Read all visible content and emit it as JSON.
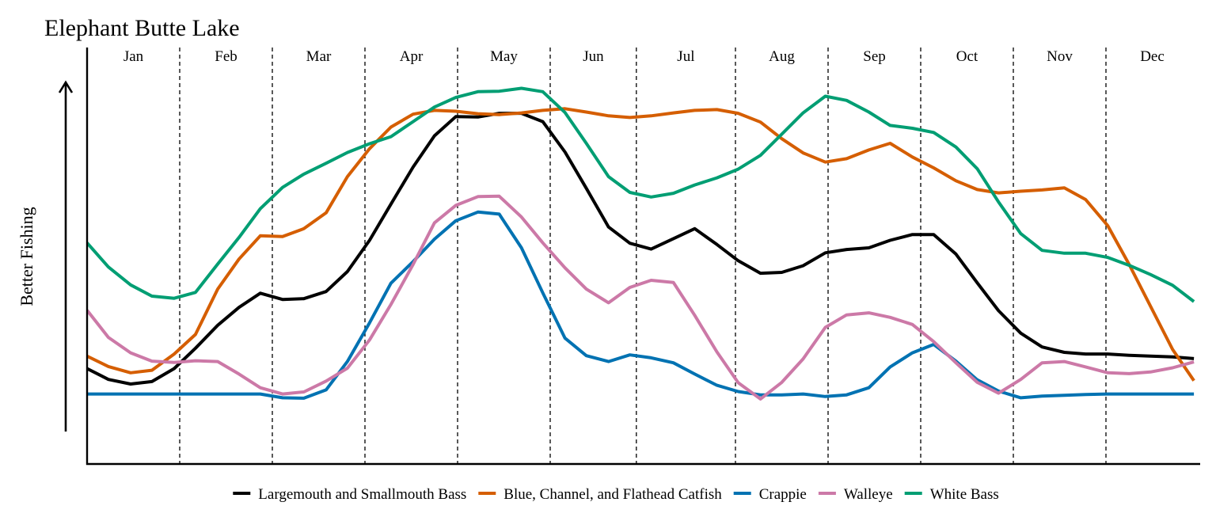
{
  "chart_data": {
    "type": "line",
    "title": "Elephant Butte Lake",
    "xlabel": "",
    "ylabel": "Better Fishing",
    "xlim": [
      0,
      12
    ],
    "ylim": [
      0,
      100
    ],
    "grid": "vertical dashed separators between months",
    "legend_position": "bottom",
    "categories": [
      "Jan",
      "Feb",
      "Mar",
      "Apr",
      "May",
      "Jun",
      "Jul",
      "Aug",
      "Sep",
      "Oct",
      "Nov",
      "Dec"
    ],
    "month_boundaries": [
      1.0,
      2.0,
      3.0,
      4.0,
      5.0,
      5.93,
      7.0,
      8.0,
      9.0,
      10.0,
      11.0
    ],
    "x": [
      0.0,
      0.23,
      0.47,
      0.7,
      0.94,
      1.17,
      1.41,
      1.64,
      1.87,
      2.11,
      2.34,
      2.58,
      2.81,
      3.05,
      3.28,
      3.52,
      3.75,
      3.98,
      4.22,
      4.45,
      4.69,
      4.92,
      5.16,
      5.39,
      5.63,
      5.86,
      6.09,
      6.33,
      6.56,
      6.8,
      7.03,
      7.27,
      7.5,
      7.73,
      7.97,
      8.2,
      8.44,
      8.67,
      8.91,
      9.14,
      9.38,
      9.61,
      9.84,
      10.08,
      10.31,
      10.55,
      10.78,
      11.02,
      11.25,
      11.48,
      11.72,
      11.95
    ],
    "series": [
      {
        "name": "Largemouth and Smallmouth Bass",
        "color": "#000000",
        "values": [
          22.9,
          20.3,
          19.2,
          19.8,
          22.9,
          27.8,
          33.3,
          37.6,
          41.0,
          39.5,
          39.7,
          41.4,
          46.2,
          53.7,
          62.4,
          71.3,
          78.8,
          83.4,
          83.3,
          84.2,
          84.2,
          82.2,
          74.9,
          66.2,
          56.9,
          53.0,
          51.6,
          54.1,
          56.5,
          52.7,
          48.8,
          45.8,
          46.0,
          47.6,
          50.7,
          51.5,
          51.9,
          53.7,
          55.1,
          55.1,
          50.4,
          43.5,
          36.8,
          31.4,
          28.1,
          26.8,
          26.4,
          26.4,
          26.1,
          25.9,
          25.7,
          25.3
        ]
      },
      {
        "name": "Blue, Channel, and Flathead Catfish",
        "color": "#d55e00",
        "values": [
          25.9,
          23.4,
          21.9,
          22.5,
          26.4,
          31.1,
          42.0,
          49.2,
          54.8,
          54.6,
          56.5,
          60.3,
          69.0,
          75.7,
          80.9,
          84.0,
          84.9,
          84.7,
          84.1,
          83.9,
          84.3,
          84.9,
          85.3,
          84.5,
          83.6,
          83.2,
          83.6,
          84.3,
          84.9,
          85.1,
          84.2,
          82.1,
          78.1,
          74.7,
          72.5,
          73.3,
          75.4,
          77.0,
          73.7,
          71.1,
          68.0,
          65.9,
          65.1,
          65.5,
          65.8,
          66.3,
          63.5,
          57.2,
          47.9,
          37.9,
          27.5,
          20.0
        ]
      },
      {
        "name": "Crappie",
        "color": "#0072b2",
        "values": [
          16.8,
          16.8,
          16.8,
          16.8,
          16.8,
          16.8,
          16.8,
          16.8,
          16.8,
          15.9,
          15.8,
          17.8,
          24.6,
          33.9,
          43.4,
          48.6,
          54.0,
          58.4,
          60.5,
          60.0,
          51.9,
          41.1,
          30.2,
          26.0,
          24.6,
          26.2,
          25.5,
          24.3,
          21.6,
          18.9,
          17.4,
          16.6,
          16.6,
          16.8,
          16.2,
          16.6,
          18.3,
          23.3,
          26.7,
          28.7,
          24.7,
          20.2,
          17.5,
          15.9,
          16.3,
          16.5,
          16.7,
          16.8,
          16.8,
          16.8,
          16.8,
          16.8
        ]
      },
      {
        "name": "Walleye",
        "color": "#cc79a7",
        "values": [
          36.9,
          30.4,
          26.7,
          24.7,
          24.4,
          24.8,
          24.6,
          21.6,
          18.3,
          16.8,
          17.3,
          19.9,
          23.0,
          29.8,
          38.3,
          47.9,
          57.9,
          62.1,
          64.2,
          64.3,
          59.3,
          53.1,
          47.1,
          42.0,
          38.7,
          42.4,
          44.1,
          43.6,
          35.7,
          26.9,
          19.5,
          15.6,
          19.6,
          25.2,
          32.8,
          35.8,
          36.3,
          35.2,
          33.5,
          29.4,
          24.3,
          19.6,
          17.0,
          20.3,
          24.3,
          24.6,
          23.3,
          21.9,
          21.7,
          22.1,
          23.1,
          24.5
        ]
      },
      {
        "name": "White Bass",
        "color": "#009e73",
        "values": [
          53.1,
          47.3,
          43.0,
          40.3,
          39.8,
          41.2,
          48.0,
          54.4,
          61.3,
          66.4,
          69.6,
          72.2,
          74.8,
          76.9,
          78.6,
          82.2,
          85.7,
          88.0,
          89.4,
          89.5,
          90.2,
          89.4,
          84.4,
          77.0,
          69.0,
          65.2,
          64.1,
          65.0,
          67.0,
          68.7,
          70.8,
          74.1,
          79.2,
          84.3,
          88.3,
          87.3,
          84.5,
          81.3,
          80.6,
          79.6,
          76.1,
          70.9,
          62.9,
          55.3,
          51.3,
          50.6,
          50.6,
          49.6,
          47.7,
          45.5,
          42.9,
          39.0
        ]
      }
    ]
  }
}
